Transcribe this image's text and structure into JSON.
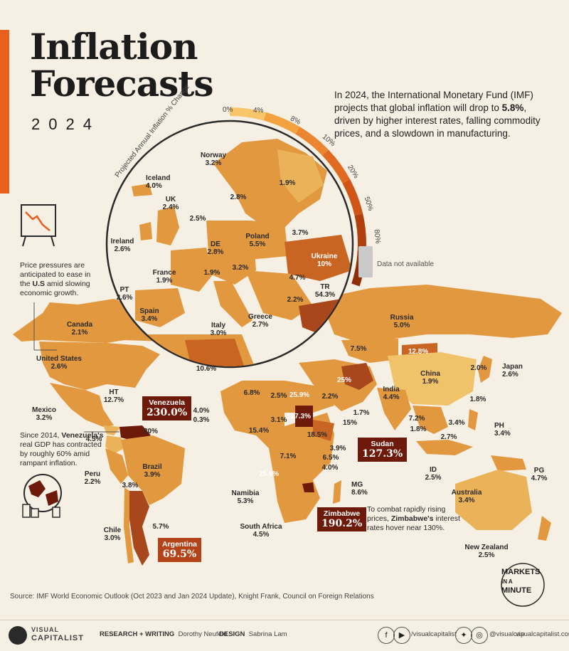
{
  "title_line1": "Inflation",
  "title_line2": "Forecasts",
  "year": "2024",
  "intro": {
    "pre": "In 2024, the International Monetary Fund (IMF) projects that global inflation will drop to ",
    "highlight": "5.8%",
    "post": ", driven by higher interest rates, falling commodity prices, and a slowdown in manufacturing."
  },
  "legend": {
    "title": "Projected Annual Inflation % Change",
    "ticks": [
      "0%",
      "4%",
      "8%",
      "10%",
      "20%",
      "50%",
      "80%"
    ],
    "colors": [
      "#f8c56a",
      "#f3a240",
      "#ec8530",
      "#e06a22",
      "#cf5416",
      "#b2400e",
      "#8f2d08"
    ],
    "na_label": "Data not available",
    "na_color": "#c9c9c9"
  },
  "colors": {
    "background": "#f6efe3",
    "land_low": "#eab35a",
    "land_mid": "#e2983e",
    "land_high": "#c96523",
    "land_extreme": "#6d1a0b",
    "accent": "#e8601c",
    "callout_dark": "#6d1a0b",
    "callout_mid": "#b34419"
  },
  "europe": [
    {
      "name": "Norway",
      "value": "3.2%"
    },
    {
      "name": "Iceland",
      "value": "4.0%"
    },
    {
      "name": "UK",
      "value": "2.4%"
    },
    {
      "name": "",
      "value": "2.5%"
    },
    {
      "name": "",
      "value": "2.8%"
    },
    {
      "name": "",
      "value": "1.9%"
    },
    {
      "name": "Ireland",
      "value": "2.6%"
    },
    {
      "name": "DE",
      "value": "2.8%"
    },
    {
      "name": "Poland",
      "value": "5.5%"
    },
    {
      "name": "",
      "value": "3.7%"
    },
    {
      "name": "Ukraine",
      "value": "10%"
    },
    {
      "name": "France",
      "value": "1.9%"
    },
    {
      "name": "",
      "value": "1.9%"
    },
    {
      "name": "",
      "value": "3.2%"
    },
    {
      "name": "",
      "value": "4.7%"
    },
    {
      "name": "PT",
      "value": "2.6%"
    },
    {
      "name": "TR",
      "value": "54.3%"
    },
    {
      "name": "",
      "value": "2.2%"
    },
    {
      "name": "Spain",
      "value": "3.4%"
    },
    {
      "name": "Italy",
      "value": "3.0%"
    },
    {
      "name": "Greece",
      "value": "2.7%"
    }
  ],
  "world": [
    {
      "name": "Canada",
      "value": "2.1%"
    },
    {
      "name": "United States",
      "value": "2.6%"
    },
    {
      "name": "HT",
      "value": "12.7%"
    },
    {
      "name": "Mexico",
      "value": "3.2%"
    },
    {
      "name": "",
      "value": "20%"
    },
    {
      "name": "",
      "value": "4.5%"
    },
    {
      "name": "Peru",
      "value": "2.2%"
    },
    {
      "name": "Brazil",
      "value": "3.9%"
    },
    {
      "name": "",
      "value": "3.8%"
    },
    {
      "name": "Chile",
      "value": "3.0%"
    },
    {
      "name": "",
      "value": "5.7%"
    },
    {
      "name": "Russia",
      "value": "5.0%"
    },
    {
      "name": "",
      "value": "7.5%"
    },
    {
      "name": "",
      "value": "12.8%"
    },
    {
      "name": "",
      "value": "10.6%"
    },
    {
      "name": "",
      "value": "25%"
    },
    {
      "name": "China",
      "value": "1.9%"
    },
    {
      "name": "",
      "value": "2.0%"
    },
    {
      "name": "Japan",
      "value": "2.6%"
    },
    {
      "name": "",
      "value": "6.8%"
    },
    {
      "name": "",
      "value": "2.5%"
    },
    {
      "name": "",
      "value": "25.9%"
    },
    {
      "name": "",
      "value": "2.2%"
    },
    {
      "name": "India",
      "value": "4.4%"
    },
    {
      "name": "",
      "value": "1.8%"
    },
    {
      "name": "",
      "value": "4.0%"
    },
    {
      "name": "",
      "value": "0.3%"
    },
    {
      "name": "",
      "value": "3.1%"
    },
    {
      "name": "",
      "value": "127.3%"
    },
    {
      "name": "",
      "value": "1.7%"
    },
    {
      "name": "",
      "value": "7.2%"
    },
    {
      "name": "",
      "value": "3.4%"
    },
    {
      "name": "",
      "value": "15.4%"
    },
    {
      "name": "",
      "value": "15%"
    },
    {
      "name": "",
      "value": "1.8%"
    },
    {
      "name": "PH",
      "value": "3.4%"
    },
    {
      "name": "",
      "value": "18.5%"
    },
    {
      "name": "",
      "value": "2.7%"
    },
    {
      "name": "",
      "value": "7.1%"
    },
    {
      "name": "",
      "value": "3.9%"
    },
    {
      "name": "",
      "value": "6.5%"
    },
    {
      "name": "",
      "value": "4.0%"
    },
    {
      "name": "ID",
      "value": "2.5%"
    },
    {
      "name": "PG",
      "value": "4.7%"
    },
    {
      "name": "",
      "value": "25.6%"
    },
    {
      "name": "MG",
      "value": "8.6%"
    },
    {
      "name": "Namibia",
      "value": "5.3%"
    },
    {
      "name": "Australia",
      "value": "3.4%"
    },
    {
      "name": "South Africa",
      "value": "4.5%"
    },
    {
      "name": "New Zealand",
      "value": "2.5%"
    }
  ],
  "callouts": {
    "venezuela": {
      "name": "Venezuela",
      "value": "230.0%"
    },
    "sudan": {
      "name": "Sudan",
      "value": "127.3%"
    },
    "zimbabwe": {
      "name": "Zimbabwe",
      "value": "190.2%"
    },
    "argentina": {
      "name": "Argentina",
      "value": "69.5%"
    }
  },
  "notes": {
    "us": [
      "Price pressures are",
      "anticipated to ease in",
      "the ",
      "U.S",
      " amid slowing",
      "economic growth."
    ],
    "venezuela": [
      "Since 2014, ",
      "Venezuela's",
      "real GDP has contracted",
      "by roughly 60% amid",
      "rampant inflation."
    ],
    "zimbabwe": [
      "To combat rapidly rising",
      "prices, ",
      "Zimbabwe's",
      " interest",
      "rates hover near 130%."
    ]
  },
  "source": "Source: IMF World Economic Outlook (Oct 2023 and Jan 2024 Update), Knight Frank, Council on Foreign Relations",
  "brand": {
    "markets": [
      "MARKETS",
      "IN A",
      "MINUTE"
    ],
    "logo_top": "VISUAL",
    "logo_bottom": "CAPITALIST",
    "research_label": "RESEARCH + WRITING",
    "research_name": "Dorothy Neufeld",
    "design_label": "DESIGN",
    "design_name": "Sabrina Lam",
    "handle1": "/visualcapitalist",
    "handle2": "@visualcap",
    "website": "visualcapitalist.com"
  }
}
